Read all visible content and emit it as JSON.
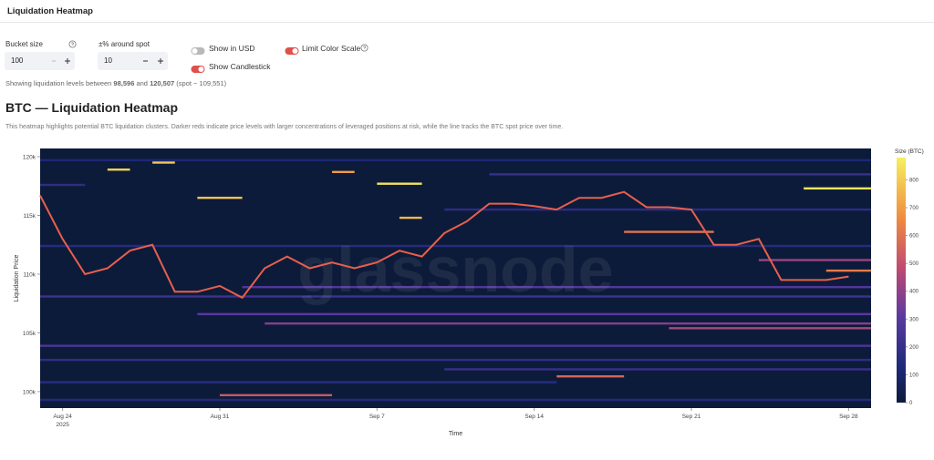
{
  "header": {
    "title": "Liquidation Heatmap"
  },
  "controls": {
    "bucket_label": "Bucket size",
    "bucket_value": "100",
    "pct_label": "±% around spot",
    "pct_value": "10",
    "usd_label": "Show in USD",
    "usd_on": false,
    "limit_label": "Limit Color Scale",
    "limit_on": true,
    "candle_label": "Show Candlestick",
    "candle_on": true
  },
  "info": {
    "prefix": "Showing liquidation levels between",
    "low": "98,596",
    "mid": "and",
    "high": "120,507",
    "suffix": "(spot ~ 109,551)"
  },
  "section": {
    "title": "BTC — Liquidation Heatmap",
    "description": "This heatmap highlights potential BTC liquidation clusters. Darker reds indicate price levels with larger concentrations of leveraged positions at risk, while the line tracks the BTC spot price over time."
  },
  "chart_data": {
    "type": "heatmap",
    "watermark": "glassnode",
    "xlabel": "Time",
    "ylabel": "Liquidation Price",
    "colorbar_title": "Size (BTC)",
    "xlim": [
      "2025-08-23",
      "2025-09-29"
    ],
    "xticks": [
      {
        "value": "2025-08-24",
        "label": "Aug 24\n2025"
      },
      {
        "value": "2025-08-31",
        "label": "Aug 31"
      },
      {
        "value": "2025-09-07",
        "label": "Sep 7"
      },
      {
        "value": "2025-09-14",
        "label": "Sep 14"
      },
      {
        "value": "2025-09-21",
        "label": "Sep 21"
      },
      {
        "value": "2025-09-28",
        "label": "Sep 28"
      }
    ],
    "ylim": [
      98600,
      120700
    ],
    "yticks": [
      {
        "value": 100000,
        "label": "100k"
      },
      {
        "value": 105000,
        "label": "105k"
      },
      {
        "value": 110000,
        "label": "110k"
      },
      {
        "value": 115000,
        "label": "115k"
      },
      {
        "value": 120000,
        "label": "120k"
      }
    ],
    "clim": [
      0,
      880
    ],
    "cticks": [
      0,
      100,
      200,
      300,
      400,
      500,
      600,
      700,
      800
    ],
    "colorscale": [
      [
        0,
        "#0d1b3a"
      ],
      [
        0.15,
        "#1f2a7a"
      ],
      [
        0.35,
        "#5a3aa0"
      ],
      [
        0.55,
        "#c04a70"
      ],
      [
        0.75,
        "#f08a40"
      ],
      [
        1,
        "#f5f060"
      ]
    ],
    "line_color": "#e8604c",
    "x": [
      "2025-08-23",
      "2025-08-24",
      "2025-08-25",
      "2025-08-26",
      "2025-08-27",
      "2025-08-28",
      "2025-08-29",
      "2025-08-30",
      "2025-08-31",
      "2025-09-01",
      "2025-09-02",
      "2025-09-03",
      "2025-09-04",
      "2025-09-05",
      "2025-09-06",
      "2025-09-07",
      "2025-09-08",
      "2025-09-09",
      "2025-09-10",
      "2025-09-11",
      "2025-09-12",
      "2025-09-13",
      "2025-09-14",
      "2025-09-15",
      "2025-09-16",
      "2025-09-17",
      "2025-09-18",
      "2025-09-19",
      "2025-09-20",
      "2025-09-21",
      "2025-09-22",
      "2025-09-23",
      "2025-09-24",
      "2025-09-25",
      "2025-09-26",
      "2025-09-27",
      "2025-09-28"
    ],
    "values": [
      116700,
      113000,
      110000,
      110500,
      112000,
      112500,
      108500,
      108500,
      109000,
      108000,
      110500,
      111500,
      110500,
      111000,
      110500,
      111000,
      112000,
      111500,
      113500,
      114500,
      116000,
      116000,
      115800,
      115500,
      116500,
      116500,
      117000,
      115700,
      115700,
      115500,
      112500,
      112500,
      113000,
      109500,
      109500,
      109500,
      109800
    ],
    "bands": [
      {
        "start": "2025-08-23",
        "end": "2025-08-25",
        "price": 117600,
        "size": 180
      },
      {
        "start": "2025-08-26",
        "end": "2025-08-27",
        "price": 118900,
        "size": 820
      },
      {
        "start": "2025-08-28",
        "end": "2025-08-29",
        "price": 119500,
        "size": 800
      },
      {
        "start": "2025-08-30",
        "end": "2025-09-01",
        "price": 116500,
        "size": 780
      },
      {
        "start": "2025-09-07",
        "end": "2025-09-09",
        "price": 117700,
        "size": 850
      },
      {
        "start": "2025-09-05",
        "end": "2025-09-06",
        "price": 118700,
        "size": 700
      },
      {
        "start": "2025-09-08",
        "end": "2025-09-09",
        "price": 114800,
        "size": 760
      },
      {
        "start": "2025-09-26",
        "end": "2025-09-29",
        "price": 117300,
        "size": 860
      },
      {
        "start": "2025-09-27",
        "end": "2025-09-29",
        "price": 110300,
        "size": 620
      },
      {
        "start": "2025-08-31",
        "end": "2025-09-05",
        "price": 99700,
        "size": 520
      },
      {
        "start": "2025-09-15",
        "end": "2025-09-18",
        "price": 101300,
        "size": 560
      },
      {
        "start": "2025-09-18",
        "end": "2025-09-22",
        "price": 113600,
        "size": 600
      },
      {
        "start": "2025-08-23",
        "end": "2025-09-29",
        "price": 108100,
        "size": 220
      },
      {
        "start": "2025-08-23",
        "end": "2025-09-29",
        "price": 103900,
        "size": 260
      },
      {
        "start": "2025-08-23",
        "end": "2025-09-29",
        "price": 102700,
        "size": 180
      },
      {
        "start": "2025-08-30",
        "end": "2025-09-29",
        "price": 106600,
        "size": 300
      },
      {
        "start": "2025-09-02",
        "end": "2025-09-29",
        "price": 105800,
        "size": 380
      },
      {
        "start": "2025-08-23",
        "end": "2025-09-29",
        "price": 112400,
        "size": 150
      },
      {
        "start": "2025-09-10",
        "end": "2025-09-29",
        "price": 115500,
        "size": 170
      },
      {
        "start": "2025-09-12",
        "end": "2025-09-29",
        "price": 118500,
        "size": 200
      },
      {
        "start": "2025-08-23",
        "end": "2025-09-29",
        "price": 119700,
        "size": 120
      },
      {
        "start": "2025-08-23",
        "end": "2025-09-29",
        "price": 99300,
        "size": 140
      },
      {
        "start": "2025-08-23",
        "end": "2025-09-15",
        "price": 100800,
        "size": 160
      },
      {
        "start": "2025-09-01",
        "end": "2025-09-29",
        "price": 108900,
        "size": 280
      },
      {
        "start": "2025-09-20",
        "end": "2025-09-29",
        "price": 105400,
        "size": 450
      },
      {
        "start": "2025-09-24",
        "end": "2025-09-29",
        "price": 111200,
        "size": 420
      },
      {
        "start": "2025-09-10",
        "end": "2025-09-29",
        "price": 101900,
        "size": 200
      }
    ]
  }
}
